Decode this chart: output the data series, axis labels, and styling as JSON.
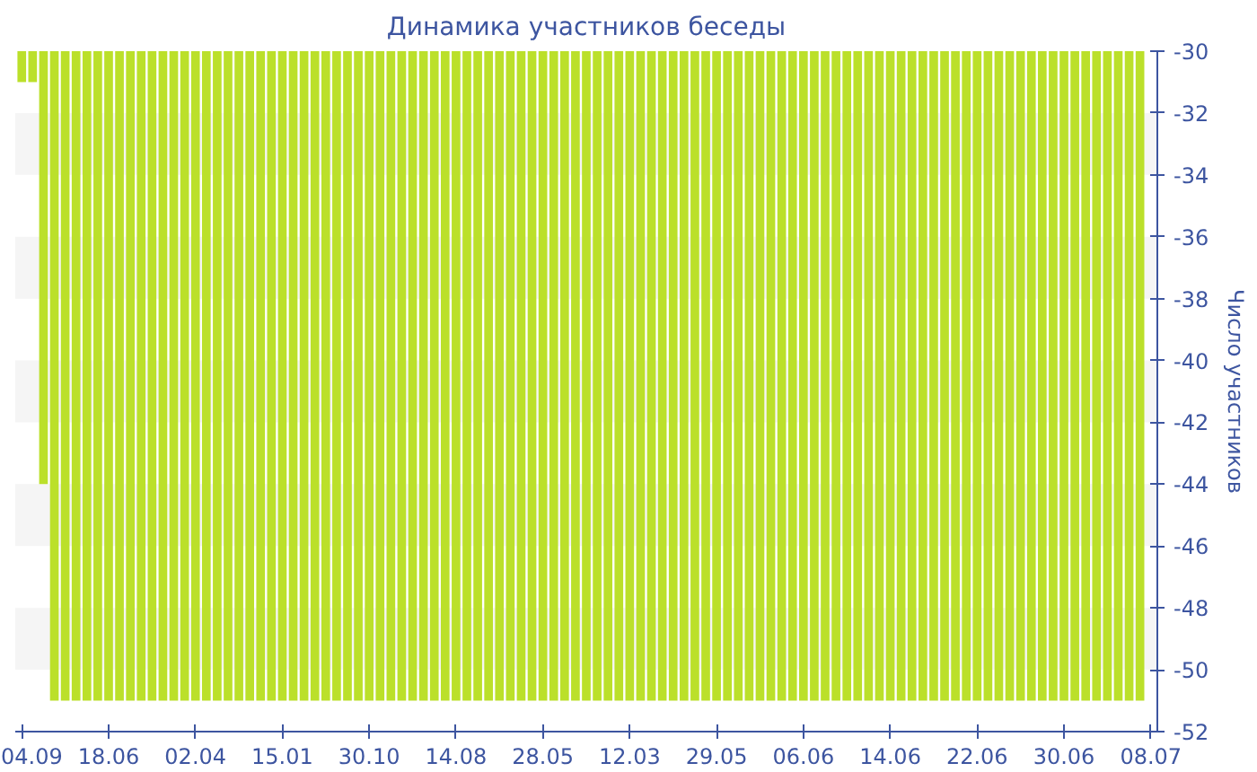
{
  "chart_data": {
    "type": "bar",
    "title": "Динамика участников беседы",
    "ylabel": "Число участников",
    "categories": [
      "04.09",
      null,
      null,
      null,
      null,
      null,
      null,
      null,
      "18.06",
      null,
      null,
      null,
      null,
      null,
      null,
      null,
      "02.04",
      null,
      null,
      null,
      null,
      null,
      null,
      null,
      "15.01",
      null,
      null,
      null,
      null,
      null,
      null,
      null,
      "30.10",
      null,
      null,
      null,
      null,
      null,
      null,
      null,
      "14.08",
      null,
      null,
      null,
      null,
      null,
      null,
      null,
      "28.05",
      null,
      null,
      null,
      null,
      null,
      null,
      null,
      "12.03",
      null,
      null,
      null,
      null,
      null,
      null,
      null,
      "29.05",
      null,
      null,
      null,
      null,
      null,
      null,
      null,
      "06.06",
      null,
      null,
      null,
      null,
      null,
      null,
      null,
      "14.06",
      null,
      null,
      null,
      null,
      null,
      null,
      null,
      "22.06",
      null,
      null,
      null,
      null,
      null,
      null,
      null,
      "30.06",
      null,
      null,
      null,
      null,
      null,
      null,
      null,
      "08.07"
    ],
    "values": [
      -31,
      -31,
      -44,
      -51,
      -51,
      -51,
      -51,
      -51,
      -51,
      -51,
      -51,
      -51,
      -51,
      -51,
      -51,
      -51,
      -51,
      -51,
      -51,
      -51,
      -51,
      -51,
      -51,
      -51,
      -51,
      -51,
      -51,
      -51,
      -51,
      -51,
      -51,
      -51,
      -51,
      -51,
      -51,
      -51,
      -51,
      -51,
      -51,
      -51,
      -51,
      -51,
      -51,
      -51,
      -51,
      -51,
      -51,
      -51,
      -51,
      -51,
      -51,
      -51,
      -51,
      -51,
      -51,
      -51,
      -51,
      -51,
      -51,
      -51,
      -51,
      -51,
      -51,
      -51,
      -51,
      -51,
      -51,
      -51,
      -51,
      -51,
      -51,
      -51,
      -51,
      -51,
      -51,
      -51,
      -51,
      -51,
      -51,
      -51,
      -51,
      -51,
      -51,
      -51,
      -51,
      -51,
      -51,
      -51,
      -51,
      -51,
      -51,
      -51,
      -51,
      -51,
      -51,
      -51,
      -51,
      -51,
      -51,
      -51,
      -51,
      -51,
      -51,
      -51,
      null
    ],
    "color": "#bbe02a",
    "ylim": [
      -52,
      -30
    ],
    "yticks": [
      -30,
      -32,
      -34,
      -36,
      -38,
      -40,
      -42,
      -44,
      -46,
      -48,
      -50,
      -52
    ],
    "bands": [
      {
        "axis": "y",
        "from": -32,
        "to": -34,
        "color": "#f5f5f5"
      },
      {
        "axis": "y",
        "from": -36,
        "to": -38,
        "color": "#f5f5f5"
      },
      {
        "axis": "y",
        "from": -40,
        "to": -42,
        "color": "#f5f5f5"
      },
      {
        "axis": "y",
        "from": -44,
        "to": -46,
        "color": "#f5f5f5"
      },
      {
        "axis": "y",
        "from": -48,
        "to": -50,
        "color": "#f5f5f5"
      }
    ]
  }
}
